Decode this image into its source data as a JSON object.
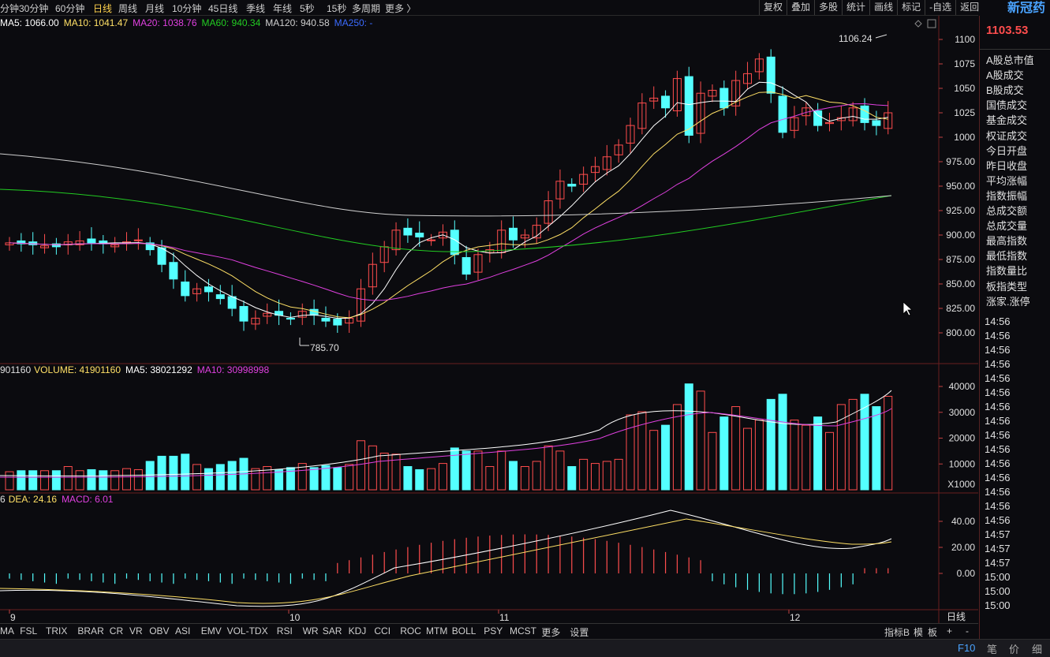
{
  "toolbar": {
    "periods": [
      "分钟",
      "30分钟",
      "60分钟",
      "日线",
      "周线",
      "月线",
      "10分钟",
      "45日线",
      "季线",
      "年线",
      "5秒",
      "15秒",
      "多周期",
      "更多 〉"
    ],
    "active_period": "日线",
    "tools": [
      "复权",
      "叠加",
      "多股",
      "统计",
      "画线",
      "标记",
      "-自选",
      "返回"
    ]
  },
  "stock": {
    "name": "新冠药",
    "last_price": "1103.53"
  },
  "ma_legend": {
    "prefix": "MA5: 1066.00",
    "ma10": "MA10: 1041.47",
    "ma20": "MA20: 1038.76",
    "ma60": "MA60: 940.34",
    "ma120": "MA120: 940.58",
    "ma250": "MA250: -"
  },
  "volume_legend": {
    "prefix": "901160",
    "volume": "VOLUME: 41901160",
    "ma5": "MA5: 38021292",
    "ma10": "MA10: 30998998"
  },
  "macd_legend": {
    "prefix": "6",
    "dea": "DEA: 24.16",
    "macd": "MACD: 6.01"
  },
  "annotations": {
    "high": "1106.24",
    "low": "785.70"
  },
  "axis": {
    "price_ticks": [
      "1100",
      "1075",
      "1050",
      "1025",
      "1000",
      "975.00",
      "950.00",
      "925.00",
      "900.00",
      "875.00",
      "850.00",
      "825.00",
      "800.00"
    ],
    "volume_ticks": [
      "40000",
      "30000",
      "20000",
      "10000"
    ],
    "volume_unit": "X1000",
    "macd_ticks": [
      "40.00",
      "20.00",
      "0.00"
    ],
    "dates": [
      "9",
      "10",
      "11",
      "12"
    ],
    "date_axis_label": "日线"
  },
  "right_panel": {
    "items": [
      "A股总市值",
      "A股成交",
      "B股成交",
      "国债成交",
      "基金成交",
      "权证成交",
      "今日开盘",
      "昨日收盘",
      "平均涨幅",
      "指数振幅",
      "总成交额",
      "总成交量",
      "最高指数",
      "最低指数",
      "指数量比",
      "板指类型",
      "涨家.涨停"
    ],
    "times": [
      "14:56",
      "14:56",
      "14:56",
      "14:56",
      "14:56",
      "14:56",
      "14:56",
      "14:56",
      "14:56",
      "14:56",
      "14:56",
      "14:56",
      "14:56",
      "14:56",
      "14:56",
      "14:57",
      "14:57",
      "14:57",
      "15:00",
      "15:00",
      "15:00"
    ]
  },
  "bottom": {
    "indicators": [
      "MA",
      "FSL",
      "TRIX",
      "BRAR",
      "CR",
      "VR",
      "OBV",
      "ASI",
      "EMV",
      "VOL-TDX",
      "RSI",
      "WR",
      "SAR",
      "KDJ",
      "CCI",
      "ROC",
      "MTM",
      "BOLL",
      "PSY",
      "MCST",
      "更多",
      "设置"
    ],
    "right_tools": [
      "指标B",
      "模",
      "板",
      "+",
      "-"
    ]
  },
  "status": {
    "items": [
      "笔",
      "价",
      "细"
    ],
    "key": "F10"
  },
  "colors": {
    "up": "#ff4d4d",
    "down": "#54ffff",
    "ma5": "#ffffff",
    "ma10": "#ffe066",
    "ma20": "#e040e0",
    "ma60": "#22cc22",
    "ma120": "#cfcfcf",
    "accent": "#4aa3ff"
  }
}
